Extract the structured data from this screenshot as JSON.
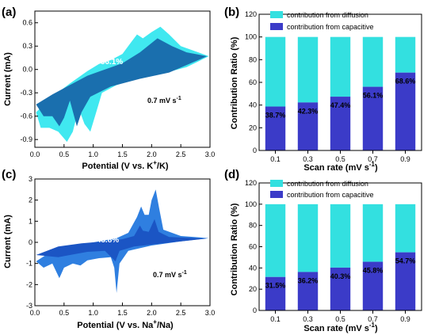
{
  "colors": {
    "diffusion": "#33e0e0",
    "capacitive": "#3b3bc8",
    "cv_outer_a": "#40e8f0",
    "cv_inner_a": "#1a6fae",
    "cv_outer_c": "#2f7fe0",
    "cv_inner_c": "#1b55c4",
    "axis": "#000000"
  },
  "chart_data": [
    {
      "type": "area",
      "panel_label": "(a)",
      "xlabel": "Potential (V vs. K",
      "xlabel_sup": "+",
      "xlabel_tail": "/K)",
      "ylabel": "Current (mA)",
      "xlim": [
        0,
        3.0
      ],
      "ylim": [
        -1.0,
        0.75
      ],
      "x_ticks": [
        "0.0",
        "0.5",
        "1.0",
        "1.5",
        "2.0",
        "2.5",
        "3.0"
      ],
      "y_ticks": [
        "-0.9",
        "-0.6",
        "-0.3",
        "0.0",
        "0.3",
        "0.6"
      ],
      "annotation_percent": "56.1%",
      "annotation_rate": "0.7 mV s",
      "annotation_rate_sup": "-1",
      "outer_upper": [
        [
          0.02,
          -0.55
        ],
        [
          0.3,
          -0.35
        ],
        [
          0.6,
          -0.18
        ],
        [
          0.9,
          -0.02
        ],
        [
          1.1,
          0.07
        ],
        [
          1.3,
          0.12
        ],
        [
          1.5,
          0.2
        ],
        [
          1.65,
          0.35
        ],
        [
          1.75,
          0.45
        ],
        [
          1.85,
          0.4
        ],
        [
          2.0,
          0.48
        ],
        [
          2.15,
          0.55
        ],
        [
          2.3,
          0.45
        ],
        [
          2.5,
          0.3
        ],
        [
          2.8,
          0.22
        ],
        [
          2.98,
          0.17
        ]
      ],
      "outer_lower": [
        [
          0.02,
          -0.55
        ],
        [
          0.1,
          -0.75
        ],
        [
          0.25,
          -0.75
        ],
        [
          0.4,
          -0.8
        ],
        [
          0.55,
          -0.93
        ],
        [
          0.65,
          -0.8
        ],
        [
          0.75,
          -0.5
        ],
        [
          0.85,
          -0.7
        ],
        [
          0.95,
          -0.8
        ],
        [
          1.05,
          -0.55
        ],
        [
          1.15,
          -0.3
        ],
        [
          1.4,
          -0.2
        ],
        [
          1.8,
          -0.1
        ],
        [
          2.2,
          -0.05
        ],
        [
          2.6,
          0.03
        ],
        [
          2.98,
          0.17
        ]
      ],
      "inner_upper": [
        [
          0.02,
          -0.45
        ],
        [
          0.3,
          -0.32
        ],
        [
          0.6,
          -0.2
        ],
        [
          0.9,
          -0.08
        ],
        [
          1.2,
          0.0
        ],
        [
          1.5,
          0.08
        ],
        [
          1.8,
          0.22
        ],
        [
          2.1,
          0.4
        ],
        [
          2.35,
          0.3
        ],
        [
          2.6,
          0.22
        ],
        [
          2.95,
          0.17
        ]
      ],
      "inner_lower": [
        [
          0.02,
          -0.45
        ],
        [
          0.15,
          -0.6
        ],
        [
          0.3,
          -0.6
        ],
        [
          0.42,
          -0.73
        ],
        [
          0.5,
          -0.62
        ],
        [
          0.6,
          -0.4
        ],
        [
          0.72,
          -0.73
        ],
        [
          0.8,
          -0.55
        ],
        [
          0.95,
          -0.35
        ],
        [
          1.3,
          -0.22
        ],
        [
          1.8,
          -0.12
        ],
        [
          2.3,
          -0.04
        ],
        [
          2.95,
          0.17
        ]
      ]
    },
    {
      "type": "bar",
      "panel_label": "(b)",
      "xlabel": "Scan rate (mV s",
      "xlabel_sup": "-1",
      "xlabel_tail": ")",
      "ylabel": "Contribution Ratio (%)",
      "ylim": [
        0,
        120
      ],
      "y_ticks": [
        "0",
        "20",
        "40",
        "60",
        "80",
        "100",
        "120"
      ],
      "categories": [
        "0.1",
        "0.3",
        "0.5",
        "0.7",
        "0.9"
      ],
      "series": [
        {
          "name": "contribution from diffusion",
          "values": [
            61.3,
            57.7,
            52.6,
            43.9,
            31.4
          ]
        },
        {
          "name": "contribution from capacitive",
          "values": [
            38.7,
            42.3,
            47.4,
            56.1,
            68.6
          ]
        }
      ],
      "bar_labels": [
        "38.7%",
        "42.3%",
        "47.4%",
        "56.1%",
        "68.6%"
      ],
      "legend": "top-left"
    },
    {
      "type": "area",
      "panel_label": "(c)",
      "xlabel": "Potential (V vs. Na",
      "xlabel_sup": "+",
      "xlabel_tail": "/Na)",
      "ylabel": "Current (mA)",
      "xlim": [
        0,
        3.0
      ],
      "ylim": [
        -3,
        3
      ],
      "x_ticks": [
        "0.0",
        "0.5",
        "1.0",
        "1.5",
        "2.0",
        "2.5",
        "3.0"
      ],
      "y_ticks": [
        "-3",
        "-2",
        "-1",
        "0",
        "1",
        "2",
        "3"
      ],
      "annotation_percent": "45.8%",
      "annotation_rate": "0.7 mV s",
      "annotation_rate_sup": "-1",
      "outer_upper": [
        [
          0.02,
          -0.9
        ],
        [
          0.3,
          -0.4
        ],
        [
          0.7,
          -0.15
        ],
        [
          1.1,
          0.05
        ],
        [
          1.4,
          0.2
        ],
        [
          1.6,
          0.45
        ],
        [
          1.75,
          1.2
        ],
        [
          1.82,
          1.7
        ],
        [
          1.88,
          1.3
        ],
        [
          1.95,
          1.3
        ],
        [
          2.0,
          2.0
        ],
        [
          2.07,
          2.5
        ],
        [
          2.13,
          1.6
        ],
        [
          2.2,
          0.6
        ],
        [
          2.5,
          0.3
        ],
        [
          2.98,
          0.2
        ]
      ],
      "outer_lower": [
        [
          0.02,
          -0.9
        ],
        [
          0.15,
          -1.2
        ],
        [
          0.3,
          -1.0
        ],
        [
          0.42,
          -1.7
        ],
        [
          0.5,
          -1.2
        ],
        [
          0.65,
          -1.0
        ],
        [
          0.78,
          -1.1
        ],
        [
          0.9,
          -0.85
        ],
        [
          1.1,
          -0.75
        ],
        [
          1.3,
          -0.7
        ],
        [
          1.36,
          -1.2
        ],
        [
          1.4,
          -2.4
        ],
        [
          1.45,
          -1.0
        ],
        [
          1.6,
          -0.4
        ],
        [
          2.0,
          -0.15
        ],
        [
          2.5,
          0.05
        ],
        [
          2.98,
          0.2
        ]
      ],
      "inner_upper": [
        [
          0.02,
          -0.6
        ],
        [
          0.4,
          -0.2
        ],
        [
          0.8,
          -0.05
        ],
        [
          1.2,
          0.05
        ],
        [
          1.5,
          0.15
        ],
        [
          1.7,
          0.3
        ],
        [
          1.8,
          0.8
        ],
        [
          1.85,
          0.55
        ],
        [
          1.95,
          0.5
        ],
        [
          2.05,
          1.1
        ],
        [
          2.12,
          0.5
        ],
        [
          2.3,
          0.25
        ],
        [
          2.95,
          0.18
        ]
      ],
      "inner_lower": [
        [
          0.02,
          -0.6
        ],
        [
          0.2,
          -0.65
        ],
        [
          0.4,
          -0.7
        ],
        [
          0.6,
          -0.6
        ],
        [
          0.9,
          -0.45
        ],
        [
          1.2,
          -0.4
        ],
        [
          1.38,
          -0.9
        ],
        [
          1.45,
          -0.4
        ],
        [
          1.7,
          -0.2
        ],
        [
          2.2,
          -0.05
        ],
        [
          2.95,
          0.18
        ]
      ]
    },
    {
      "type": "bar",
      "panel_label": "(d)",
      "xlabel": "Scan rate (mV s",
      "xlabel_sup": "-1",
      "xlabel_tail": ")",
      "ylabel": "Contribution Ratio (%)",
      "ylim": [
        0,
        120
      ],
      "y_ticks": [
        "0",
        "20",
        "40",
        "60",
        "80",
        "100",
        "120"
      ],
      "categories": [
        "0.1",
        "0.3",
        "0.5",
        "0.7",
        "0.9"
      ],
      "series": [
        {
          "name": "contribution from diffusion",
          "values": [
            68.5,
            63.8,
            59.7,
            54.2,
            45.3
          ]
        },
        {
          "name": "contribution from capacitive",
          "values": [
            31.5,
            36.2,
            40.3,
            45.8,
            54.7
          ]
        }
      ],
      "bar_labels": [
        "31.5%",
        "36.2%",
        "40.3%",
        "45.8%",
        "54.7%"
      ],
      "legend": "top-left"
    }
  ]
}
